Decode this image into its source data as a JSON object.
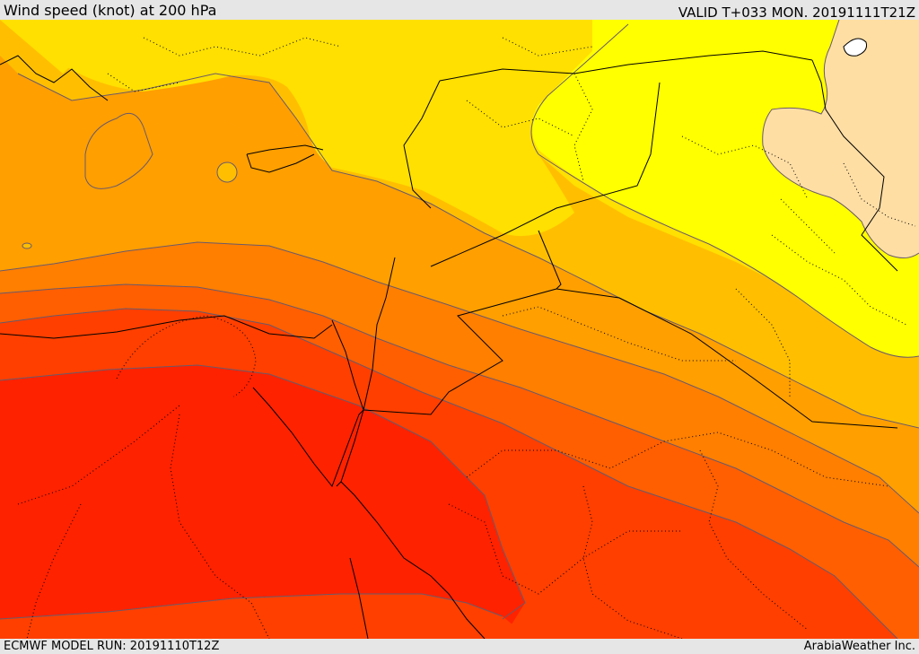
{
  "header": {
    "title": "Wind speed (knot) at 200 hPa",
    "valid": "VALID T+033 MON. 20191111T21Z"
  },
  "footer": {
    "model_run": "ECMWF MODEL RUN: 20191110T12Z",
    "credit": "ArabiaWeather Inc."
  },
  "map": {
    "field": "wind speed at 200 hPa",
    "palette": {
      "band_1": "#ffbf9f",
      "band_2": "#ffff00",
      "band_3": "#ffe000",
      "band_4": "#ffbf00",
      "band_5": "#ff9f00",
      "band_6": "#ff7f00",
      "band_7": "#ff5f00",
      "band_8": "#ff3f00",
      "band_9": "#ff2200",
      "contour_line": "#6a5a6a",
      "border_line": "#000000"
    }
  }
}
